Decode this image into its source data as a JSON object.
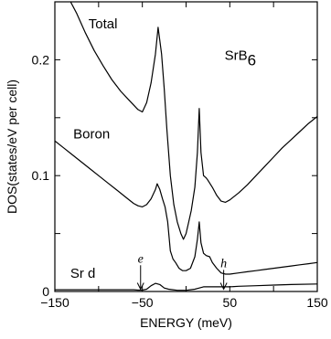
{
  "chart_data": {
    "type": "line",
    "title": "",
    "xlabel": "ENERGY (meV)",
    "ylabel": "DOS(states/eV per cell)",
    "xlim": [
      -150,
      150
    ],
    "ylim": [
      0,
      0.25
    ],
    "xticks": [
      -150,
      -100,
      -50,
      0,
      50,
      100,
      150
    ],
    "xtick_labels": [
      "−150",
      "",
      "−50",
      "",
      "50",
      "",
      "150"
    ],
    "yticks": [
      0,
      0.05,
      0.1,
      0.15,
      0.2,
      0.25
    ],
    "ytick_labels": [
      "0",
      "",
      "0.1",
      "",
      "0.2",
      ""
    ],
    "grid": false,
    "series": [
      {
        "name": "Total",
        "x": [
          -132,
          -125,
          -115,
          -105,
          -95,
          -85,
          -75,
          -65,
          -55,
          -50,
          -45,
          -40,
          -35,
          -32,
          -28,
          -25,
          -22,
          -18,
          -14,
          -10,
          -6,
          -3,
          0,
          3,
          6,
          10,
          13,
          15,
          17,
          20,
          23,
          25,
          30,
          35,
          40,
          45,
          50,
          60,
          70,
          80,
          90,
          100,
          110,
          120,
          130,
          140,
          150
        ],
        "y": [
          0.25,
          0.24,
          0.223,
          0.208,
          0.195,
          0.183,
          0.173,
          0.165,
          0.157,
          0.155,
          0.163,
          0.18,
          0.205,
          0.228,
          0.205,
          0.175,
          0.14,
          0.1,
          0.075,
          0.06,
          0.05,
          0.045,
          0.05,
          0.06,
          0.07,
          0.09,
          0.12,
          0.158,
          0.12,
          0.1,
          0.098,
          0.096,
          0.09,
          0.083,
          0.078,
          0.077,
          0.079,
          0.085,
          0.092,
          0.1,
          0.108,
          0.116,
          0.124,
          0.131,
          0.138,
          0.145,
          0.151
        ]
      },
      {
        "name": "Boron",
        "x": [
          -150,
          -140,
          -130,
          -120,
          -110,
          -100,
          -90,
          -80,
          -70,
          -60,
          -55,
          -50,
          -45,
          -40,
          -35,
          -33,
          -30,
          -27,
          -24,
          -21,
          -18,
          -15,
          -12,
          -8,
          -4,
          0,
          5,
          10,
          13,
          15,
          17,
          20,
          23,
          27,
          30,
          35,
          40,
          45,
          50,
          60,
          70,
          80,
          90,
          100,
          110,
          120,
          130,
          140,
          150
        ],
        "y": [
          0.13,
          0.124,
          0.118,
          0.112,
          0.106,
          0.1,
          0.094,
          0.088,
          0.082,
          0.076,
          0.074,
          0.073,
          0.075,
          0.08,
          0.088,
          0.093,
          0.088,
          0.08,
          0.073,
          0.06,
          0.035,
          0.028,
          0.025,
          0.02,
          0.018,
          0.018,
          0.02,
          0.03,
          0.045,
          0.06,
          0.042,
          0.033,
          0.031,
          0.03,
          0.025,
          0.02,
          0.016,
          0.015,
          0.015,
          0.016,
          0.017,
          0.018,
          0.019,
          0.02,
          0.021,
          0.022,
          0.023,
          0.024,
          0.025
        ]
      },
      {
        "name": "Sr d",
        "x": [
          -150,
          -120,
          -90,
          -70,
          -60,
          -55,
          -50,
          -45,
          -40,
          -35,
          -30,
          -25,
          -20,
          -15,
          -10,
          -5,
          0,
          5,
          10,
          15,
          20,
          25,
          30,
          40,
          50,
          60,
          80,
          100,
          120,
          150
        ],
        "y": [
          0.0015,
          0.0015,
          0.0015,
          0.0015,
          0.0015,
          0.0012,
          0.0012,
          0.002,
          0.005,
          0.007,
          0.006,
          0.003,
          0.002,
          0.0015,
          0.001,
          0.001,
          0.001,
          0.0015,
          0.002,
          0.003,
          0.004,
          0.004,
          0.004,
          0.004,
          0.004,
          0.0045,
          0.005,
          0.0055,
          0.006,
          0.0065
        ]
      }
    ],
    "annotations": [
      {
        "text": "Total",
        "x": -95,
        "y": 0.227
      },
      {
        "text": "Boron",
        "x": -108,
        "y": 0.132
      },
      {
        "text": "Sr d",
        "x": -118,
        "y": 0.012
      },
      {
        "text": "SrB",
        "subscript": "6",
        "x": 62,
        "y": 0.2
      },
      {
        "text": "e",
        "x": -52,
        "y": 0.025,
        "arrow_to": [
          -52,
          0.002
        ],
        "style": "italic"
      },
      {
        "text": "h",
        "x": 43,
        "y": 0.021,
        "arrow_to": [
          43,
          0.002
        ],
        "style": "italic"
      }
    ]
  }
}
